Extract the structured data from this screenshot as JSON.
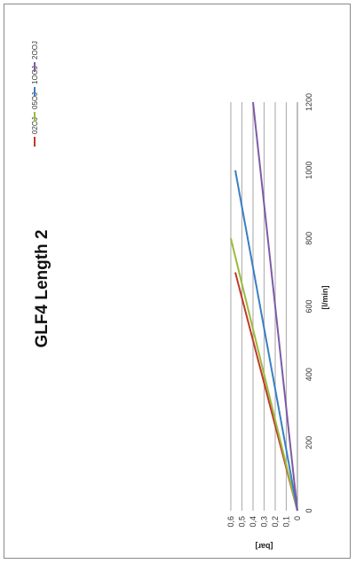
{
  "chart_data": {
    "type": "line",
    "title": "GLF4 Length 2",
    "xlabel": "[l/min]",
    "ylabel": "[bar]",
    "xlim": [
      0,
      1200
    ],
    "ylim": [
      0,
      0.6
    ],
    "x_ticks": [
      "0",
      "200",
      "400",
      "600",
      "800",
      "1000",
      "1200"
    ],
    "y_ticks": [
      "0",
      "0,1",
      "0,2",
      "0,3",
      "0,4",
      "0,5",
      "0,6"
    ],
    "grid": true,
    "legend_position": "top",
    "series": [
      {
        "name": "02OJ",
        "color": "#c0392b",
        "points": [
          [
            0,
            0
          ],
          [
            700,
            0.56
          ]
        ]
      },
      {
        "name": "05OJ",
        "color": "#9bbb3a",
        "points": [
          [
            0,
            0
          ],
          [
            800,
            0.6
          ]
        ]
      },
      {
        "name": "1OOJ",
        "color": "#3a7fc1",
        "points": [
          [
            0,
            0
          ],
          [
            1000,
            0.56
          ]
        ]
      },
      {
        "name": "2OOJ",
        "color": "#7d5ba6",
        "points": [
          [
            0,
            0
          ],
          [
            1200,
            0.4
          ]
        ]
      }
    ]
  }
}
